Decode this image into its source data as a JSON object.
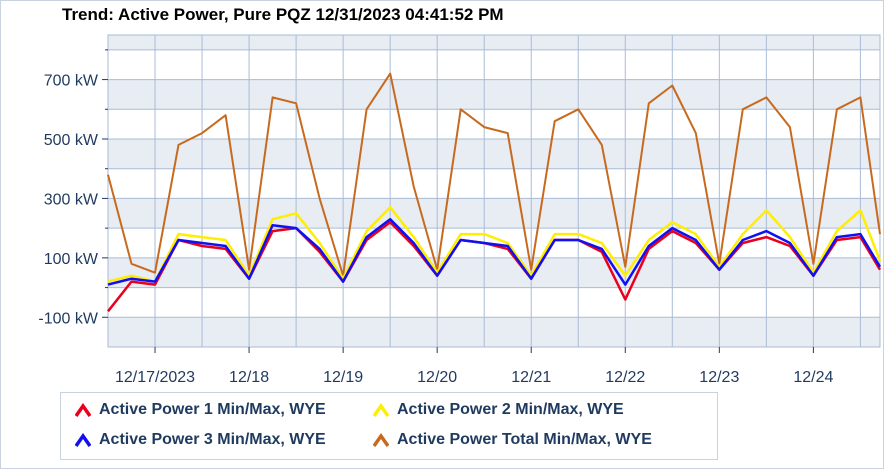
{
  "title": "Trend: Active Power, Pure PQZ 12/31/2023 04:41:52 PM",
  "colors": {
    "p1": "#e8001c",
    "p2": "#ffee00",
    "p3": "#1010f0",
    "total": "#c86a1e",
    "band": "#e8ecf3",
    "grid": "#a9bcd6"
  },
  "legend": [
    {
      "label": "Active Power 1 Min/Max, WYE",
      "color_key": "p1"
    },
    {
      "label": "Active Power 2 Min/Max, WYE",
      "color_key": "p2"
    },
    {
      "label": "Active Power 3 Min/Max, WYE",
      "color_key": "p3"
    },
    {
      "label": "Active Power Total Min/Max, WYE",
      "color_key": "total"
    }
  ],
  "chart_data": {
    "type": "line",
    "title": "Trend: Active Power, Pure PQZ 12/31/2023 04:41:52 PM",
    "xlabel": "",
    "ylabel": "",
    "y_unit": "kW",
    "ylim": [
      -200,
      850
    ],
    "yticks": [
      -100,
      100,
      300,
      500,
      700
    ],
    "ytick_labels": [
      "-100 kW",
      "100 kW",
      "300 kW",
      "500 kW",
      "700 kW"
    ],
    "xlim": [
      "2023-12-16T12:00",
      "2023-12-24T17:00"
    ],
    "xticks": [
      "2023-12-17T00:00",
      "2023-12-18T00:00",
      "2023-12-19T00:00",
      "2023-12-20T00:00",
      "2023-12-21T00:00",
      "2023-12-22T00:00",
      "2023-12-23T00:00",
      "2023-12-24T00:00"
    ],
    "xtick_labels": [
      "12/17/2023",
      "12/18",
      "12/19",
      "12/20",
      "12/21",
      "12/22",
      "12/23",
      "12/24"
    ],
    "grid": true,
    "legend_position": "bottom",
    "x": [
      "2023-12-16T12:00",
      "2023-12-16T18:00",
      "2023-12-17T00:00",
      "2023-12-17T06:00",
      "2023-12-17T12:00",
      "2023-12-17T18:00",
      "2023-12-18T00:00",
      "2023-12-18T06:00",
      "2023-12-18T12:00",
      "2023-12-18T18:00",
      "2023-12-19T00:00",
      "2023-12-19T06:00",
      "2023-12-19T12:00",
      "2023-12-19T18:00",
      "2023-12-20T00:00",
      "2023-12-20T06:00",
      "2023-12-20T12:00",
      "2023-12-20T18:00",
      "2023-12-21T00:00",
      "2023-12-21T06:00",
      "2023-12-21T12:00",
      "2023-12-21T18:00",
      "2023-12-22T00:00",
      "2023-12-22T06:00",
      "2023-12-22T12:00",
      "2023-12-22T18:00",
      "2023-12-23T00:00",
      "2023-12-23T06:00",
      "2023-12-23T12:00",
      "2023-12-23T18:00",
      "2023-12-24T00:00",
      "2023-12-24T06:00",
      "2023-12-24T12:00",
      "2023-12-24T17:00"
    ],
    "series": [
      {
        "name": "Active Power 1 Min/Max, WYE",
        "color_key": "p1",
        "values": [
          -80,
          20,
          10,
          160,
          140,
          130,
          30,
          190,
          200,
          120,
          20,
          160,
          220,
          140,
          40,
          160,
          150,
          130,
          30,
          160,
          160,
          120,
          -40,
          130,
          190,
          150,
          60,
          150,
          170,
          140,
          40,
          160,
          170,
          60
        ]
      },
      {
        "name": "Active Power 2 Min/Max, WYE",
        "color_key": "p2",
        "values": [
          20,
          40,
          20,
          180,
          170,
          160,
          40,
          230,
          250,
          150,
          30,
          190,
          270,
          170,
          50,
          180,
          180,
          150,
          40,
          180,
          180,
          150,
          40,
          160,
          220,
          180,
          70,
          180,
          260,
          170,
          50,
          190,
          260,
          90
        ]
      },
      {
        "name": "Active Power 3 Min/Max, WYE",
        "color_key": "p3",
        "values": [
          10,
          30,
          20,
          160,
          150,
          140,
          30,
          210,
          200,
          130,
          20,
          170,
          230,
          150,
          40,
          160,
          150,
          140,
          30,
          160,
          160,
          130,
          10,
          140,
          200,
          160,
          60,
          160,
          190,
          150,
          40,
          170,
          180,
          70
        ]
      },
      {
        "name": "Active Power Total Min/Max, WYE",
        "color_key": "total",
        "values": [
          380,
          80,
          50,
          480,
          520,
          580,
          60,
          640,
          620,
          300,
          40,
          600,
          720,
          340,
          60,
          600,
          540,
          520,
          60,
          560,
          600,
          480,
          70,
          620,
          680,
          520,
          80,
          600,
          640,
          540,
          80,
          600,
          640,
          180
        ]
      }
    ]
  }
}
